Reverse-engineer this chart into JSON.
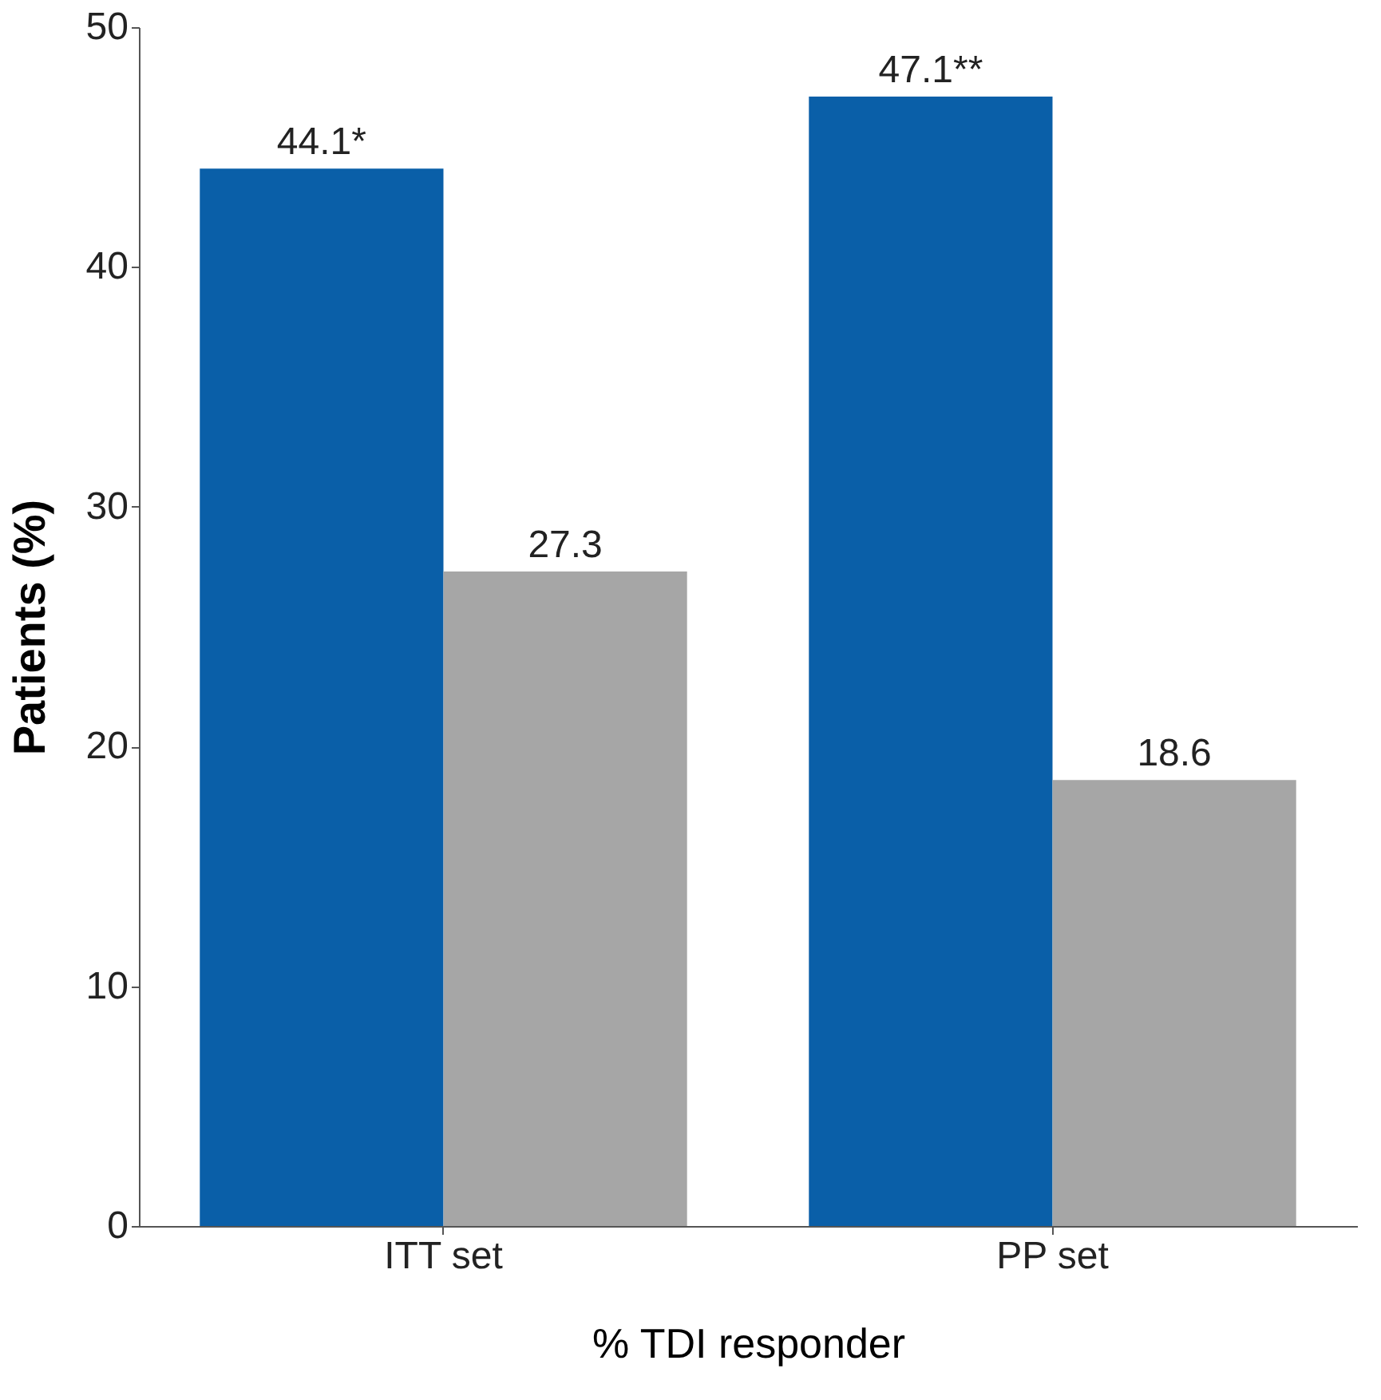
{
  "chart_data": {
    "type": "bar",
    "xlabel": "% TDI responder",
    "ylabel": "Patients (%)",
    "categories": [
      "ITT set",
      "PP set"
    ],
    "series": [
      {
        "color": "#0a5fa8",
        "values": [
          44.1,
          47.1
        ],
        "value_labels": [
          "44.1*",
          "47.1**"
        ]
      },
      {
        "color": "#a6a6a6",
        "values": [
          27.3,
          18.6
        ],
        "value_labels": [
          "27.3",
          "18.6"
        ]
      }
    ],
    "ylim": [
      0,
      50
    ],
    "yticks": [
      0,
      10,
      20,
      30,
      40,
      50
    ],
    "grid": false
  }
}
